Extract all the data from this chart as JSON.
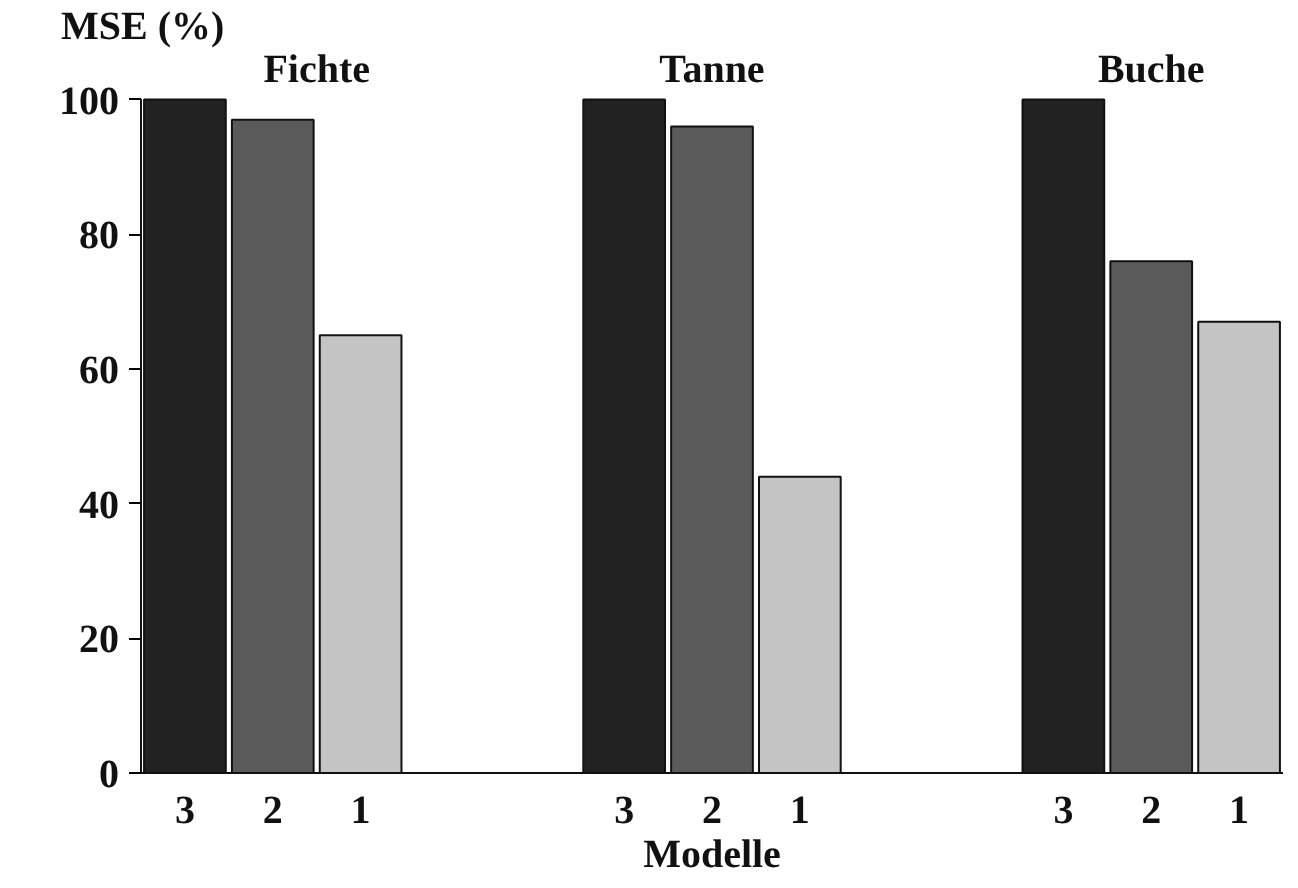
{
  "chart_data": {
    "type": "bar",
    "ylabel": "MSE (%)",
    "xlabel": "Modelle",
    "categories": [
      "3",
      "2",
      "1",
      null,
      null,
      "3",
      "2",
      "1",
      null,
      null,
      "3",
      "2",
      "1"
    ],
    "values": [
      100,
      97,
      65,
      null,
      null,
      100,
      96,
      44,
      null,
      null,
      100,
      76,
      67
    ],
    "colors": [
      "#222222",
      "#5a5a5a",
      "#c4c4c4",
      null,
      null,
      "#222222",
      "#5a5a5a",
      "#c4c4c4",
      null,
      null,
      "#222222",
      "#5a5a5a",
      "#c4c4c4"
    ],
    "annotations": [
      "Fichte",
      "Tanne",
      "Buche"
    ],
    "ylim": [
      0,
      100
    ],
    "yticks": [
      0,
      20,
      40,
      60,
      80,
      100
    ],
    "grid": false
  }
}
